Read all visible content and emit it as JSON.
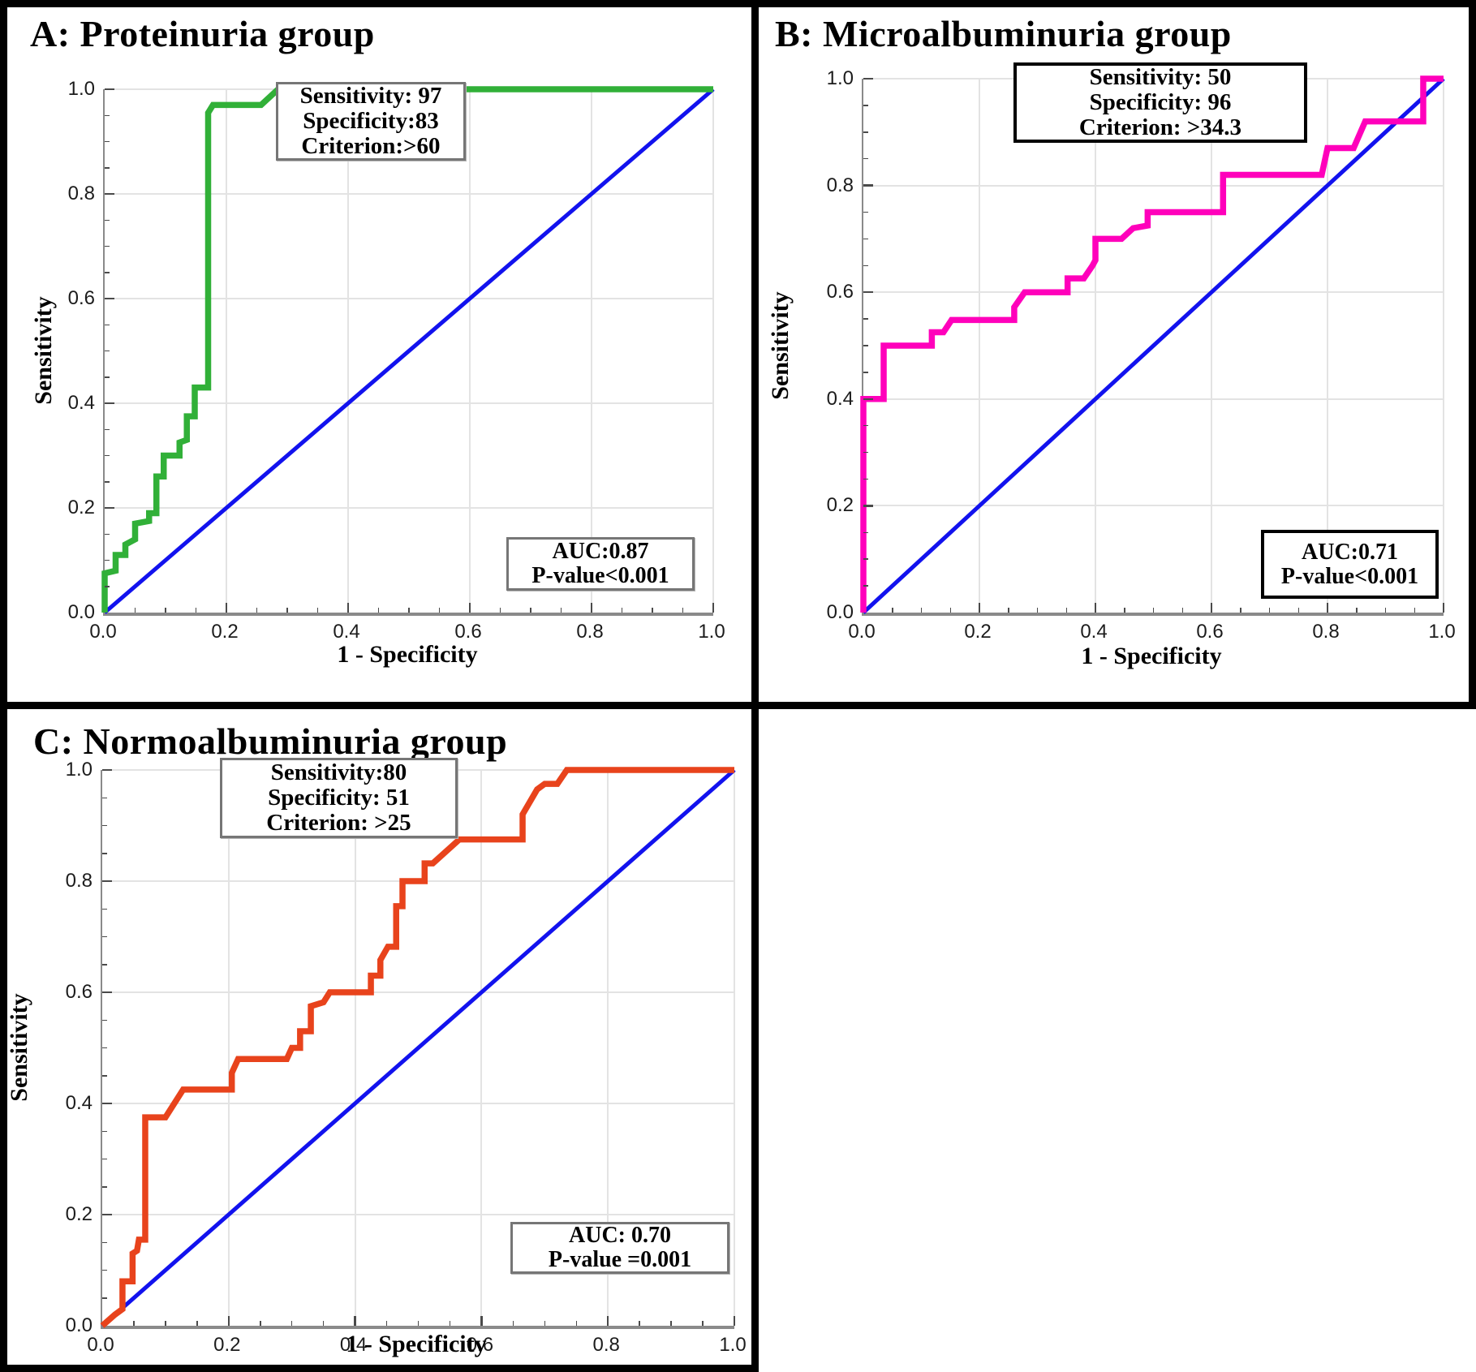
{
  "figure": {
    "background": "#ffffff",
    "panel_border_color": "#000000",
    "grid_color": "#e3e3e3",
    "axis_color": "#8a8a8a",
    "diagonal_color": "#1212ee"
  },
  "panels": [
    {
      "key": "a",
      "title": "A: Proteinuria group",
      "curve_color": "#31b038",
      "annotation_lines": [
        "Sensitivity: 97",
        "Specificity:83",
        "Criterion:>60"
      ],
      "auc_lines": [
        "AUC:0.87",
        "P-value<0.001"
      ],
      "xlabel": "1 - Specificity",
      "ylabel": "Sensitivity",
      "tick_labels": [
        "0.0",
        "0.2",
        "0.4",
        "0.6",
        "0.8",
        "1.0"
      ]
    },
    {
      "key": "b",
      "title": "B: Microalbuminuria group",
      "curve_color": "#ff00bb",
      "annotation_lines": [
        "Sensitivity: 50",
        "Specificity: 96",
        "Criterion: >34.3"
      ],
      "auc_lines": [
        "AUC:0.71",
        "P-value<0.001"
      ],
      "xlabel": "1 - Specificity",
      "ylabel": "Sensitivity",
      "tick_labels": [
        "0.0",
        "0.2",
        "0.4",
        "0.6",
        "0.8",
        "1.0"
      ]
    },
    {
      "key": "c",
      "title": "C: Normoalbuminuria group",
      "curve_color": "#e8431c",
      "annotation_lines": [
        "Sensitivity:80",
        "Specificity: 51",
        "Criterion: >25"
      ],
      "auc_lines": [
        "AUC: 0.70",
        "P-value =0.001"
      ],
      "xlabel": "1 - Specificity",
      "ylabel": "Sensitivity",
      "tick_labels": [
        "0.0",
        "0.2",
        "0.4",
        "0.6",
        "0.8",
        "1.0"
      ]
    }
  ],
  "chart_data": [
    {
      "type": "line",
      "title": "A: Proteinuria group",
      "xlabel": "1 - Specificity",
      "ylabel": "Sensitivity",
      "xlim": [
        0,
        1
      ],
      "ylim": [
        0,
        1
      ],
      "grid": true,
      "annotations": {
        "operating_point": {
          "sensitivity": 97,
          "specificity": 83,
          "criterion": ">60"
        },
        "auc": 0.87,
        "p_value": "<0.001"
      },
      "series": [
        {
          "name": "ROC curve",
          "color": "#31b038",
          "points": [
            [
              0,
              0
            ],
            [
              0,
              0.075
            ],
            [
              0.018,
              0.08
            ],
            [
              0.018,
              0.11
            ],
            [
              0.034,
              0.11
            ],
            [
              0.034,
              0.13
            ],
            [
              0.042,
              0.135
            ],
            [
              0.05,
              0.14
            ],
            [
              0.05,
              0.17
            ],
            [
              0.073,
              0.175
            ],
            [
              0.073,
              0.19
            ],
            [
              0.085,
              0.19
            ],
            [
              0.085,
              0.26
            ],
            [
              0.097,
              0.26
            ],
            [
              0.097,
              0.3
            ],
            [
              0.123,
              0.3
            ],
            [
              0.123,
              0.325
            ],
            [
              0.135,
              0.33
            ],
            [
              0.135,
              0.375
            ],
            [
              0.148,
              0.375
            ],
            [
              0.148,
              0.43
            ],
            [
              0.17,
              0.43
            ],
            [
              0.17,
              0.955
            ],
            [
              0.178,
              0.97
            ],
            [
              0.257,
              0.97
            ],
            [
              0.285,
              1.0
            ],
            [
              1,
              1
            ]
          ]
        },
        {
          "name": "reference diagonal",
          "color": "#1212ee",
          "points": [
            [
              0,
              0
            ],
            [
              1,
              1
            ]
          ]
        }
      ]
    },
    {
      "type": "line",
      "title": "B: Microalbuminuria group",
      "xlabel": "1 - Specificity",
      "ylabel": "Sensitivity",
      "xlim": [
        0,
        1
      ],
      "ylim": [
        0,
        1
      ],
      "grid": true,
      "annotations": {
        "operating_point": {
          "sensitivity": 50,
          "specificity": 96,
          "criterion": ">34.3"
        },
        "auc": 0.71,
        "p_value": "<0.001"
      },
      "series": [
        {
          "name": "ROC curve",
          "color": "#ff00bb",
          "points": [
            [
              0,
              0
            ],
            [
              0,
              0.4
            ],
            [
              0.035,
              0.4
            ],
            [
              0.035,
              0.5
            ],
            [
              0.118,
              0.5
            ],
            [
              0.118,
              0.525
            ],
            [
              0.138,
              0.525
            ],
            [
              0.152,
              0.548
            ],
            [
              0.26,
              0.548
            ],
            [
              0.26,
              0.572
            ],
            [
              0.278,
              0.6
            ],
            [
              0.352,
              0.6
            ],
            [
              0.352,
              0.626
            ],
            [
              0.38,
              0.626
            ],
            [
              0.395,
              0.65
            ],
            [
              0.4,
              0.66
            ],
            [
              0.4,
              0.7
            ],
            [
              0.445,
              0.7
            ],
            [
              0.465,
              0.72
            ],
            [
              0.49,
              0.725
            ],
            [
              0.49,
              0.75
            ],
            [
              0.62,
              0.75
            ],
            [
              0.62,
              0.82
            ],
            [
              0.79,
              0.82
            ],
            [
              0.8,
              0.87
            ],
            [
              0.845,
              0.87
            ],
            [
              0.865,
              0.92
            ],
            [
              0.965,
              0.92
            ],
            [
              0.965,
              1.0
            ],
            [
              1,
              1
            ]
          ]
        },
        {
          "name": "reference diagonal",
          "color": "#1212ee",
          "points": [
            [
              0,
              0
            ],
            [
              1,
              1
            ]
          ]
        }
      ]
    },
    {
      "type": "line",
      "title": "C: Normoalbuminuria group",
      "xlabel": "1 - Specificity",
      "ylabel": "Sensitivity",
      "xlim": [
        0,
        1
      ],
      "ylim": [
        0,
        1
      ],
      "grid": true,
      "annotations": {
        "operating_point": {
          "sensitivity": 80,
          "specificity": 51,
          "criterion": ">25"
        },
        "auc": 0.7,
        "p_value": "=0.001"
      },
      "series": [
        {
          "name": "ROC curve",
          "color": "#e8431c",
          "points": [
            [
              0,
              0
            ],
            [
              0.02,
              0.02
            ],
            [
              0.032,
              0.03
            ],
            [
              0.032,
              0.08
            ],
            [
              0.048,
              0.08
            ],
            [
              0.048,
              0.13
            ],
            [
              0.055,
              0.135
            ],
            [
              0.058,
              0.155
            ],
            [
              0.068,
              0.155
            ],
            [
              0.068,
              0.375
            ],
            [
              0.1,
              0.375
            ],
            [
              0.128,
              0.425
            ],
            [
              0.205,
              0.425
            ],
            [
              0.205,
              0.455
            ],
            [
              0.215,
              0.48
            ],
            [
              0.292,
              0.48
            ],
            [
              0.3,
              0.5
            ],
            [
              0.313,
              0.5
            ],
            [
              0.313,
              0.53
            ],
            [
              0.33,
              0.53
            ],
            [
              0.33,
              0.575
            ],
            [
              0.35,
              0.582
            ],
            [
              0.36,
              0.6
            ],
            [
              0.425,
              0.6
            ],
            [
              0.425,
              0.63
            ],
            [
              0.44,
              0.63
            ],
            [
              0.44,
              0.658
            ],
            [
              0.452,
              0.682
            ],
            [
              0.465,
              0.682
            ],
            [
              0.465,
              0.755
            ],
            [
              0.475,
              0.755
            ],
            [
              0.475,
              0.8
            ],
            [
              0.51,
              0.8
            ],
            [
              0.51,
              0.832
            ],
            [
              0.523,
              0.832
            ],
            [
              0.565,
              0.875
            ],
            [
              0.665,
              0.875
            ],
            [
              0.665,
              0.92
            ],
            [
              0.688,
              0.965
            ],
            [
              0.7,
              0.975
            ],
            [
              0.72,
              0.975
            ],
            [
              0.735,
              1.0
            ],
            [
              1,
              1
            ]
          ]
        },
        {
          "name": "reference diagonal",
          "color": "#1212ee",
          "points": [
            [
              0,
              0
            ],
            [
              1,
              1
            ]
          ]
        }
      ]
    }
  ]
}
